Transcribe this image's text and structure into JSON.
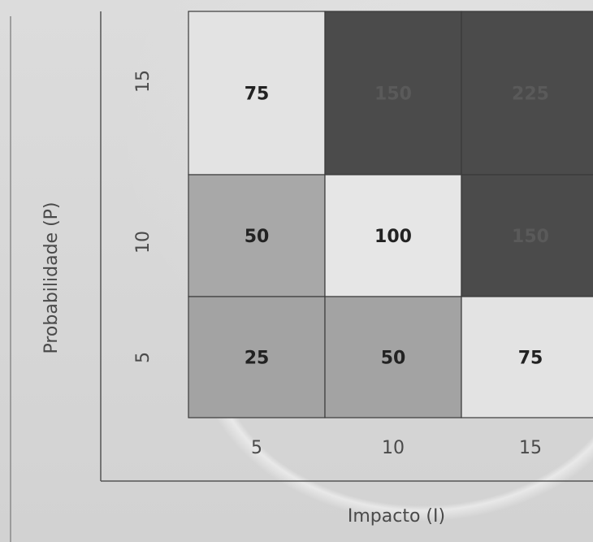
{
  "chart_data": {
    "type": "heatmap",
    "title": "",
    "xlabel": "Impacto (I)",
    "ylabel": "Probabilidade (P)",
    "x_categories": [
      "5",
      "10",
      "15"
    ],
    "y_categories": [
      "15",
      "10",
      "5"
    ],
    "values": [
      [
        75,
        150,
        225
      ],
      [
        50,
        100,
        150
      ],
      [
        25,
        50,
        75
      ]
    ],
    "cell_colors": [
      [
        "#e3e3e3",
        "#4b4b4b",
        "#4b4b4b"
      ],
      [
        "#a8a8a8",
        "#e6e6e6",
        "#4b4b4b"
      ],
      [
        "#a3a3a3",
        "#a3a3a3",
        "#e3e3e3"
      ]
    ],
    "label_colors": [
      [
        "#222222",
        "#5a5a5a",
        "#5a5a5a"
      ],
      [
        "#222222",
        "#222222",
        "#5a5a5a"
      ],
      [
        "#222222",
        "#222222",
        "#222222"
      ]
    ]
  }
}
